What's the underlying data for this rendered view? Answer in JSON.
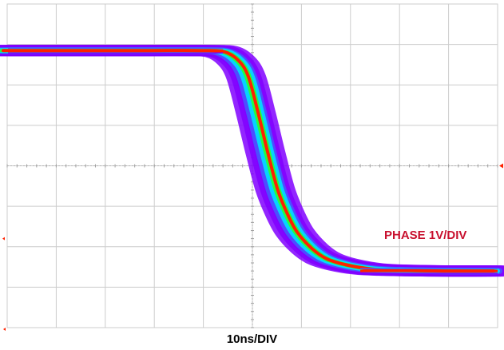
{
  "chart_data": {
    "type": "line",
    "trace_label": "PHASE 1V/DIV",
    "xlabel": "10ns/DIV",
    "ylabel": "",
    "grid": true,
    "grid_divisions": {
      "horizontal": 10,
      "vertical": 8
    },
    "x_unit": "div",
    "y_unit": "div",
    "xlim": [
      0,
      10
    ],
    "ylim": [
      0,
      8
    ],
    "series": [
      {
        "x": [
          0,
          1,
          2,
          3,
          4,
          4.5,
          4.8,
          5.0,
          5.2,
          5.4,
          5.6,
          5.8,
          6.0,
          6.3,
          6.6,
          7.0,
          7.5,
          8,
          9,
          10
        ],
        "values": [
          6.85,
          6.85,
          6.85,
          6.85,
          6.85,
          6.82,
          6.6,
          6.2,
          5.3,
          4.3,
          3.4,
          2.8,
          2.35,
          1.95,
          1.7,
          1.55,
          1.45,
          1.42,
          1.4,
          1.4
        ]
      }
    ],
    "colors": {
      "outer_envelope": "#8000ff",
      "outer_mid": "#4060ff",
      "middle_band": "#00e0ff",
      "mid_inner": "#20ff40",
      "core_peak": "#ff2000",
      "grid_line": "#cccccc",
      "trace_label": "#c8102e"
    }
  }
}
